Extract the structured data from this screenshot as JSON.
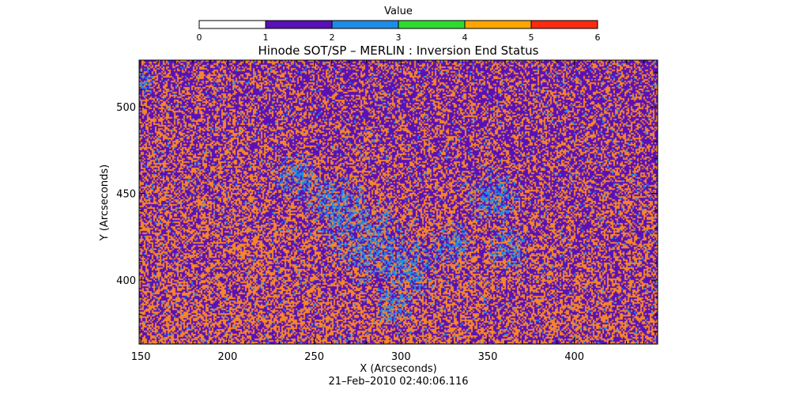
{
  "chart_data": {
    "type": "heatmap",
    "title": "Hinode SOT/SP – MERLIN : Inversion End Status",
    "xlabel": "X (Arcseconds)",
    "ylabel": "Y (Arcseconds)",
    "timestamp": "21–Feb–2010 02:40:06.116",
    "xlim": [
      149,
      448
    ],
    "ylim": [
      363,
      527
    ],
    "x_ticks": [
      150,
      200,
      250,
      300,
      350,
      400
    ],
    "y_ticks": [
      400,
      450,
      500
    ],
    "colorbar": {
      "title": "Value",
      "range": [
        0,
        6
      ],
      "ticks": [
        0,
        1,
        2,
        3,
        4,
        5,
        6
      ],
      "segments": [
        {
          "from": 0,
          "to": 1,
          "color": "#ffffff"
        },
        {
          "from": 1,
          "to": 2,
          "color": "#5a10b8"
        },
        {
          "from": 2,
          "to": 3,
          "color": "#1e8ce6"
        },
        {
          "from": 3,
          "to": 4,
          "color": "#2edc2e"
        },
        {
          "from": 4,
          "to": 5,
          "color": "#ffa500"
        },
        {
          "from": 5,
          "to": 6,
          "color": "#ff2a10"
        }
      ]
    },
    "pixel_classes": [
      {
        "value": 1,
        "color": "#5a10b8"
      },
      {
        "value": 2,
        "color": "#1e8ce6"
      },
      {
        "value": 4,
        "color": "#f5862a"
      }
    ],
    "blue_regions": [
      {
        "x": 282,
        "y": 420,
        "r": 16
      },
      {
        "x": 262,
        "y": 442,
        "r": 13
      },
      {
        "x": 305,
        "y": 405,
        "r": 12
      },
      {
        "x": 355,
        "y": 448,
        "r": 11
      },
      {
        "x": 362,
        "y": 418,
        "r": 9
      },
      {
        "x": 330,
        "y": 420,
        "r": 9
      },
      {
        "x": 295,
        "y": 385,
        "r": 8
      },
      {
        "x": 240,
        "y": 460,
        "r": 9
      },
      {
        "x": 152,
        "y": 515,
        "r": 5
      }
    ]
  }
}
